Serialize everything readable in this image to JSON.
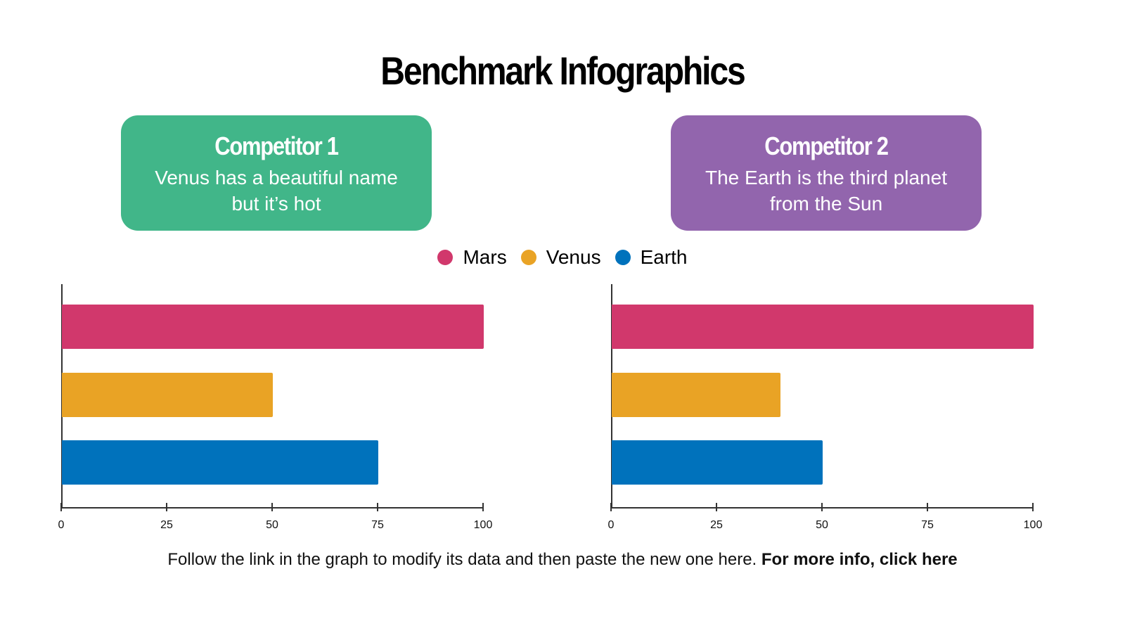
{
  "title": "Benchmark Infographics",
  "colors": {
    "mars": "#d1386c",
    "venus": "#e9a325",
    "earth": "#0072bc",
    "competitor1_card": "#41b689",
    "competitor2_card": "#9265ad"
  },
  "cards": [
    {
      "title": "Competitor 1",
      "text": "Venus has a beautiful name but it’s hot"
    },
    {
      "title": "Competitor 2",
      "text": "The Earth is the third planet from the Sun"
    }
  ],
  "legend": [
    {
      "label": "Mars",
      "icon": "circle-dot-icon"
    },
    {
      "label": "Venus",
      "icon": "circle-dot-icon"
    },
    {
      "label": "Earth",
      "icon": "circle-dot-icon"
    }
  ],
  "footer": {
    "text": "Follow the link in the graph to modify its data and then paste the new one here.",
    "link": "For more info, click here"
  },
  "chart_data": [
    {
      "type": "bar",
      "orientation": "horizontal",
      "title": "Competitor 1",
      "categories": [
        "Mars",
        "Venus",
        "Earth"
      ],
      "values": [
        100,
        50,
        75
      ],
      "xlabel": "",
      "ylabel": "",
      "xlim": [
        0,
        100
      ],
      "xticks": [
        "0",
        "25",
        "50",
        "75",
        "100"
      ],
      "grid": false,
      "legend_position": "top"
    },
    {
      "type": "bar",
      "orientation": "horizontal",
      "title": "Competitor 2",
      "categories": [
        "Mars",
        "Venus",
        "Earth"
      ],
      "values": [
        100,
        40,
        50
      ],
      "xlabel": "",
      "ylabel": "",
      "xlim": [
        0,
        100
      ],
      "xticks": [
        "0",
        "25",
        "50",
        "75",
        "100"
      ],
      "grid": false,
      "legend_position": "top"
    }
  ]
}
